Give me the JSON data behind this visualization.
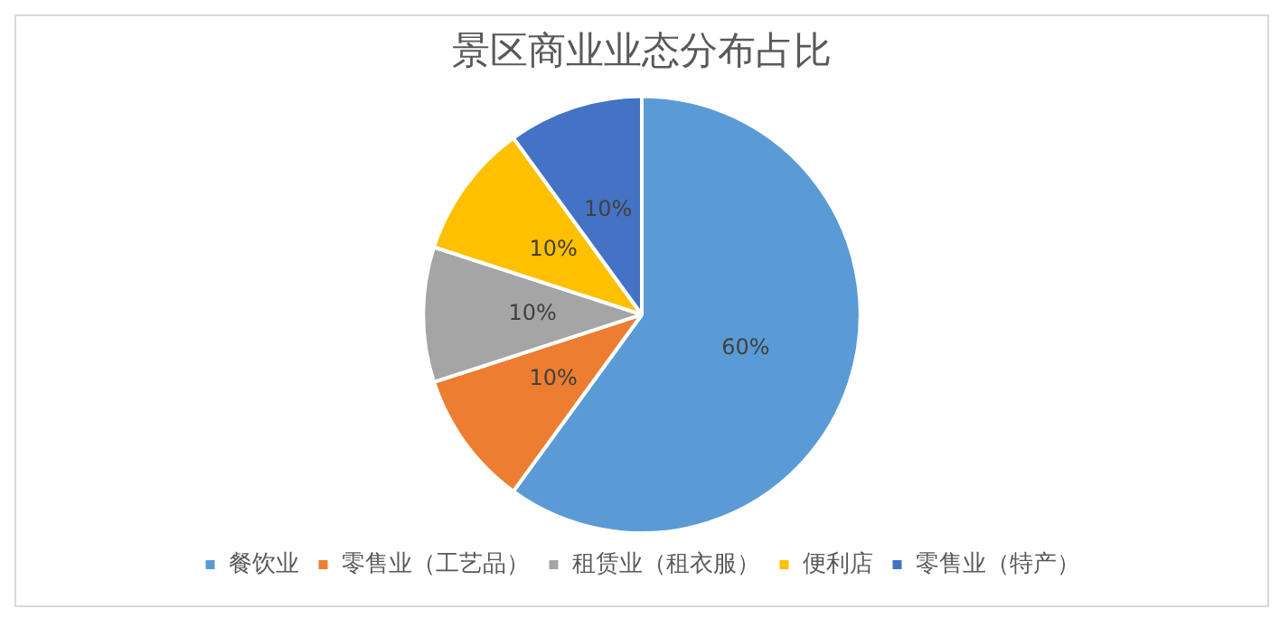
{
  "chart_data": {
    "type": "pie",
    "title": "景区商业业态分布占比",
    "categories": [
      "餐饮业",
      "零售业（工艺品）",
      "租赁业（租衣服）",
      "便利店",
      "零售业（特产）"
    ],
    "values": [
      60,
      10,
      10,
      10,
      10
    ],
    "value_labels": [
      "60%",
      "10%",
      "10%",
      "10%",
      "10%"
    ],
    "colors": [
      "#5b9bd5",
      "#ed7d31",
      "#a5a5a5",
      "#ffc000",
      "#4472c4"
    ],
    "legend": "bottom"
  }
}
